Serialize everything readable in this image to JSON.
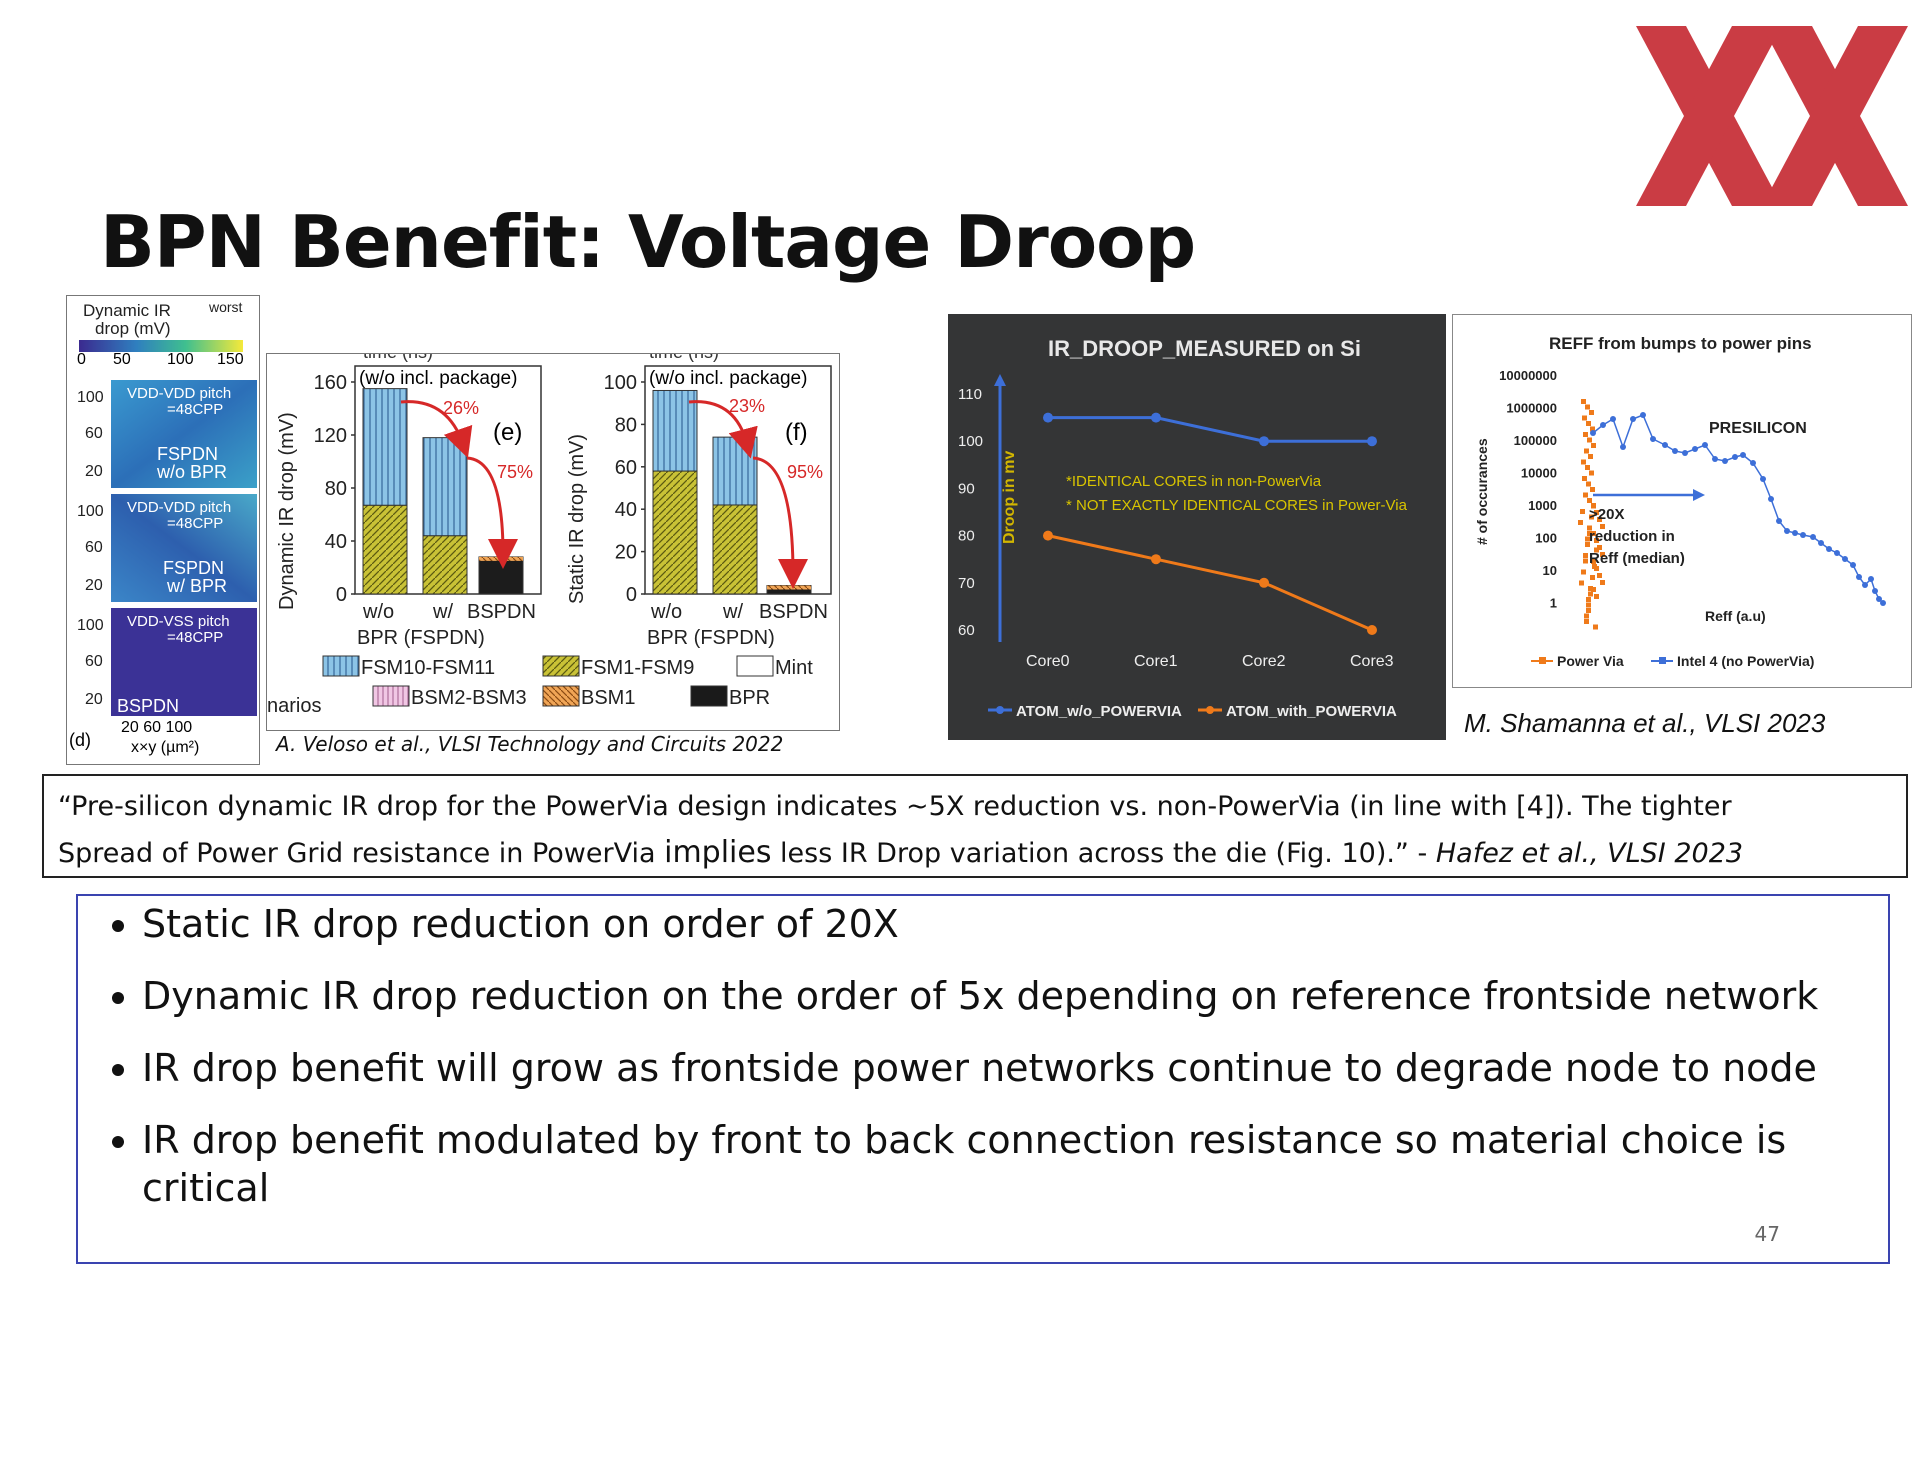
{
  "title": "BPN Benefit: Voltage Droop",
  "logo": {
    "name": "xx-logo",
    "color": "#c8323a"
  },
  "fig_heatmap": {
    "header1": "Dynamic IR",
    "header2": "drop (mV)",
    "worst": "worst",
    "scale_ticks": [
      "0",
      "50",
      "100",
      "150"
    ],
    "panel1": {
      "pitch": "VDD-VDD pitch",
      "cpp": "=48CPP",
      "name1": "FSPDN",
      "name2": "w/o BPR"
    },
    "panel2": {
      "pitch": "VDD-VDD pitch",
      "cpp": "=48CPP",
      "name1": "FSPDN",
      "name2": "w/ BPR"
    },
    "panel3": {
      "pitch": "VDD-VSS pitch",
      "cpp": "=48CPP",
      "name1": "BSPDN"
    },
    "y_ticks": [
      "100",
      "60",
      "20"
    ],
    "label_d": "(d)",
    "x_ticks": "20 60 100",
    "x_label": "x×y (µm²)"
  },
  "fig_bars": {
    "left": {
      "ylabel": "Dynamic IR drop (mV)",
      "yticks": [
        "160",
        "120",
        "80",
        "40",
        "0"
      ],
      "ymax": 160,
      "pkg": "(w/o incl. package)",
      "panel": "(e)",
      "pct1": "26%",
      "pct2": "75%",
      "bars": [
        {
          "label": "w/o",
          "fsm10": 88,
          "fsm1": 67
        },
        {
          "label": "w/",
          "fsm10": 74,
          "fsm1": 44
        },
        {
          "label": "BSPDN",
          "fsm10": 0,
          "fsm1": 0,
          "bpr": 28
        }
      ],
      "x2": "BPR (FSPDN)"
    },
    "right": {
      "ylabel": "Static IR drop (mV)",
      "yticks": [
        "100",
        "80",
        "60",
        "40",
        "20",
        "0"
      ],
      "ymax": 100,
      "pkg": "(w/o incl. package)",
      "panel": "(f)",
      "pct1": "23%",
      "pct2": "95%",
      "bars": [
        {
          "label": "w/o",
          "fsm10": 38,
          "fsm1": 58
        },
        {
          "label": "w/",
          "fsm10": 32,
          "fsm1": 42
        },
        {
          "label": "BSPDN",
          "fsm10": 0,
          "fsm1": 0,
          "bpr": 4
        }
      ],
      "x2": "BPR (FSPDN)"
    },
    "time_label": "time (ns)",
    "legend": [
      "FSM10-FSM11",
      "FSM1-FSM9",
      "Mint",
      "BSM2-BSM3",
      "BSM1",
      "BPR"
    ],
    "side": "narios",
    "colors": {
      "fsm10": "#7fb7dd",
      "fsm1": "#b8b42a",
      "bsm2": "#d9a6c9",
      "bsm1": "#e0994a",
      "bpr": "#222222"
    }
  },
  "cap_veloso": "A. Veloso et al., VLSI Technology and Circuits 2022",
  "chart_data": [
    {
      "type": "line",
      "title": "IR_DROOP_MEASURED on Si",
      "ylabel": "Droop in mv",
      "categories": [
        "Core0",
        "Core1",
        "Core2",
        "Core3"
      ],
      "ylim": [
        60,
        110
      ],
      "yticks": [
        "110",
        "100",
        "90",
        "80",
        "70",
        "60"
      ],
      "series": [
        {
          "name": "ATOM_w/o_POWERVIA",
          "values": [
            105,
            105,
            100,
            100
          ],
          "color": "#3d6fd8"
        },
        {
          "name": "ATOM_with_POWERVIA",
          "values": [
            80,
            75,
            70,
            60
          ],
          "color": "#ef7a1a"
        }
      ],
      "annotations": [
        "*IDENTICAL CORES in non-PowerVia",
        "* NOT EXACTLY IDENTICAL CORES in Power-Via"
      ],
      "legend": "bottom"
    },
    {
      "type": "scatter",
      "title": "REFF  from bumps to power pins",
      "ylabel": "# of occurances",
      "xlabel": "Reff (a.u)",
      "yscale": "log",
      "yticks": [
        "10000000",
        "1000000",
        "100000",
        "10000",
        "1000",
        "100",
        "10",
        "1"
      ],
      "annotations": [
        "PRESILICON",
        ">20X",
        "reduction in",
        "Reff (median)"
      ],
      "series": [
        {
          "name": "Power Via",
          "color": "#ef7a1a"
        },
        {
          "name": "Intel 4 (no PowerVia)",
          "color": "#3d6fd8"
        }
      ],
      "legend": "bottom"
    }
  ],
  "cap_shamanna": "M. Shamanna et al., VLSI 2023",
  "quote": {
    "line1": "“Pre-silicon dynamic IR drop for the PowerVia design indicates ~5X reduction vs. non-PowerVia (in line with [4]). The tighter",
    "line2a": "Spread of Power Grid resistance in PowerVia ",
    "line2b": "implies",
    "line2c": " less IR Drop variation across the die (Fig. 10).” - ",
    "line2d": "Hafez et al., VLSI 2023"
  },
  "bullets": [
    "Static IR drop reduction on order of 20X",
    "Dynamic IR drop reduction on the order of 5x depending on reference frontside network",
    "IR drop benefit will grow as frontside power networks continue to degrade node to node",
    "IR drop benefit modulated by front to back connection resistance so material choice is critical"
  ],
  "page_number": "47"
}
